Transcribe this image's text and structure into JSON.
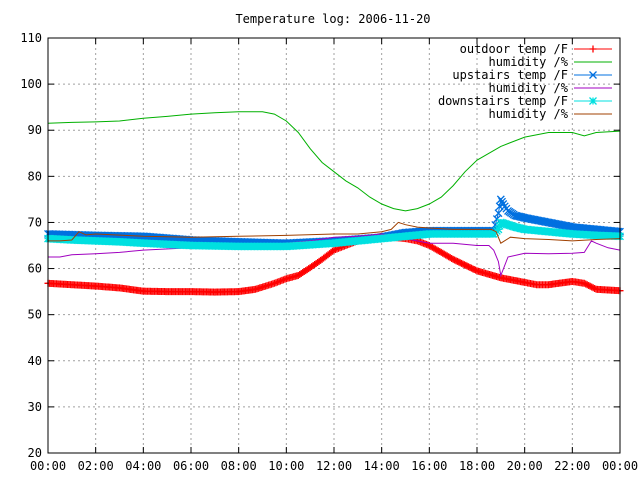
{
  "chart_data": {
    "type": "line",
    "title": "Temperature log: 2006-11-20",
    "xlabel": "",
    "ylabel": "",
    "ylim": [
      20,
      110
    ],
    "xlim": [
      0,
      24
    ],
    "grid": true,
    "legend_position": "top-right",
    "y_ticks": [
      "20",
      "30",
      "40",
      "50",
      "60",
      "70",
      "80",
      "90",
      "100",
      "110"
    ],
    "x_ticks": [
      "00:00",
      "02:00",
      "04:00",
      "06:00",
      "08:00",
      "10:00",
      "12:00",
      "14:00",
      "16:00",
      "18:00",
      "20:00",
      "22:00",
      "00:00"
    ],
    "series": [
      {
        "name": "outdoor temp /F",
        "color": "#ff0000",
        "marker": "plus",
        "x": [
          0,
          1,
          2,
          3,
          4,
          5,
          6,
          7,
          8,
          8.7,
          9.5,
          10,
          10.5,
          11,
          11.5,
          12,
          12.5,
          13,
          14,
          15,
          15.5,
          16,
          16.5,
          17,
          18,
          19,
          20,
          20.5,
          21,
          22,
          22.5,
          23,
          24
        ],
        "y": [
          56.8,
          56.5,
          56.2,
          55.8,
          55.1,
          55.0,
          55.0,
          54.9,
          55.0,
          55.5,
          56.8,
          57.8,
          58.5,
          60.2,
          62.0,
          64.0,
          65.0,
          66.0,
          67.0,
          66.5,
          66.0,
          65.0,
          63.5,
          62.0,
          59.5,
          58.0,
          57.0,
          56.5,
          56.5,
          57.2,
          56.8,
          55.5,
          55.2
        ]
      },
      {
        "name": "humidity /%",
        "color": "#00b000",
        "marker": "none",
        "x": [
          0,
          1,
          2,
          3,
          4,
          5,
          6,
          7,
          8,
          9,
          9.5,
          10,
          10.5,
          11,
          11.5,
          12,
          12.5,
          13,
          13.5,
          14,
          14.5,
          15,
          15.5,
          16,
          16.5,
          17,
          17.5,
          18,
          19,
          20,
          21,
          22,
          22.5,
          23,
          24
        ],
        "y": [
          91.5,
          91.7,
          91.8,
          92.0,
          92.6,
          93.0,
          93.5,
          93.8,
          94.0,
          94.0,
          93.5,
          92.0,
          89.5,
          86.0,
          83.0,
          81.0,
          79.0,
          77.5,
          75.5,
          74.0,
          73.0,
          72.5,
          73.0,
          74.0,
          75.5,
          78.0,
          81.0,
          83.5,
          86.5,
          88.5,
          89.5,
          89.5,
          88.8,
          89.5,
          89.8
        ]
      },
      {
        "name": "upstairs temp /F",
        "color": "#0070e0",
        "marker": "cross",
        "x": [
          0,
          2,
          4,
          6,
          8,
          10,
          12,
          14,
          15,
          16,
          17,
          18,
          18.7,
          18.9,
          19.0,
          19.1,
          19.3,
          19.6,
          20,
          21,
          22,
          23,
          24
        ],
        "y": [
          67.5,
          67.2,
          67.0,
          66.2,
          65.8,
          65.5,
          66.0,
          66.8,
          67.8,
          68.2,
          68.2,
          68.2,
          68.2,
          72.0,
          75.0,
          74.0,
          72.5,
          71.5,
          71.0,
          70.0,
          69.0,
          68.5,
          68.0
        ]
      },
      {
        "name": "humidity /%",
        "color": "#a000c0",
        "marker": "none",
        "x": [
          0,
          0.5,
          1,
          2,
          3,
          4,
          6,
          8,
          10,
          11,
          12,
          13,
          14,
          15,
          16,
          17,
          18,
          18.5,
          18.7,
          18.9,
          19.0,
          19.3,
          20,
          21,
          22,
          22.5,
          22.8,
          23,
          23.5,
          24
        ],
        "y": [
          62.5,
          62.5,
          63.0,
          63.2,
          63.5,
          64.0,
          64.5,
          65.0,
          65.5,
          66.0,
          66.8,
          67.0,
          67.5,
          66.5,
          65.5,
          65.5,
          65.0,
          65.0,
          64.0,
          61.5,
          58.5,
          62.5,
          63.3,
          63.2,
          63.3,
          63.5,
          66.0,
          65.5,
          64.5,
          64.0
        ]
      },
      {
        "name": "downstairs temp /F",
        "color": "#00e0e0",
        "marker": "star",
        "x": [
          0,
          1,
          2,
          3,
          4,
          6,
          8,
          10,
          12,
          14,
          15,
          16,
          17,
          18,
          18.7,
          18.9,
          19.0,
          19.3,
          19.6,
          20,
          21,
          22,
          23,
          24
        ],
        "y": [
          66.5,
          66.2,
          66.0,
          65.8,
          65.5,
          65.0,
          64.8,
          64.8,
          65.5,
          66.5,
          67.0,
          67.5,
          67.5,
          67.5,
          67.5,
          68.5,
          70.0,
          69.5,
          69.0,
          68.5,
          68.0,
          67.5,
          67.2,
          67.0
        ]
      },
      {
        "name": "humidity /%",
        "color": "#a04000",
        "marker": "none",
        "x": [
          0,
          0.5,
          1,
          1.3,
          1.6,
          2,
          4,
          6,
          8,
          10,
          12,
          13,
          14,
          14.4,
          14.7,
          15,
          15.5,
          16,
          17,
          18,
          18.6,
          18.8,
          19.0,
          19.4,
          20,
          21,
          22,
          23,
          24
        ],
        "y": [
          66.0,
          66.0,
          66.2,
          68.0,
          67.3,
          67.5,
          67.0,
          66.8,
          67.0,
          67.2,
          67.5,
          67.5,
          68.0,
          68.5,
          70.0,
          69.5,
          69.0,
          68.8,
          68.5,
          68.5,
          68.5,
          68.0,
          65.5,
          66.8,
          66.5,
          66.3,
          66.0,
          66.3,
          66.5
        ]
      }
    ]
  }
}
